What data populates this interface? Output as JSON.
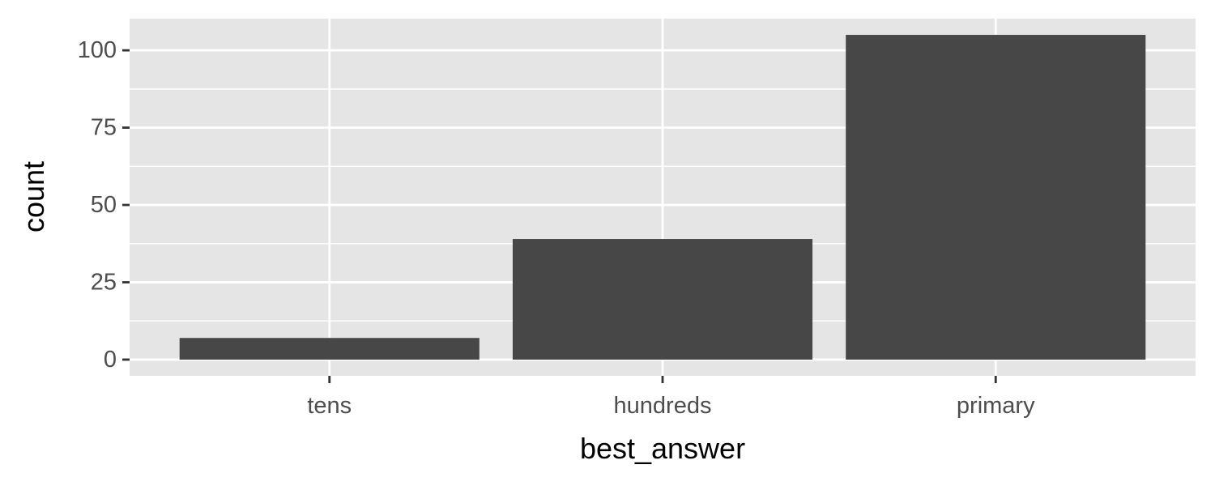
{
  "chart_data": {
    "type": "bar",
    "categories": [
      "tens",
      "hundreds",
      "primary"
    ],
    "values": [
      7,
      39,
      105
    ],
    "title": "",
    "xlabel": "best_answer",
    "ylabel": "count",
    "ylim": [
      -5.25,
      110.25
    ],
    "yticks": [
      0,
      25,
      50,
      75,
      100
    ],
    "y_minor_ticks": [
      12.5,
      37.5,
      62.5,
      87.5
    ],
    "grid": true,
    "legend": "none",
    "colors": {
      "bar": "#474747",
      "panel": "#e5e5e5",
      "grid": "#ffffff",
      "tick_mark": "#333333"
    }
  }
}
